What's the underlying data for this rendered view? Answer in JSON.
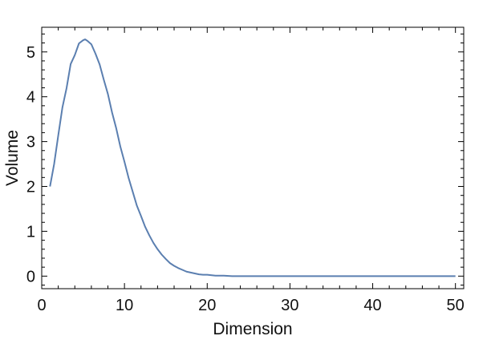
{
  "chart_data": {
    "type": "line",
    "title": "",
    "xlabel": "Dimension",
    "ylabel": "Volume",
    "xlim": [
      0,
      51
    ],
    "ylim": [
      -0.28,
      5.55
    ],
    "xticks": [
      0,
      10,
      20,
      30,
      40,
      50
    ],
    "yticks": [
      0,
      1,
      2,
      3,
      4,
      5
    ],
    "grid": false,
    "legend": "none",
    "series": [
      {
        "color": "#5b7fb0",
        "x": [
          1,
          1.5,
          2,
          2.5,
          3,
          3.5,
          4,
          4.5,
          5,
          5.25,
          5.5,
          6,
          6.5,
          7,
          7.5,
          8,
          8.5,
          9,
          9.5,
          10,
          10.5,
          11,
          11.5,
          12,
          12.5,
          13,
          13.5,
          14,
          14.5,
          15,
          15.5,
          16,
          16.5,
          17,
          17.5,
          18,
          18.5,
          19,
          19.5,
          20,
          21,
          22,
          23,
          24,
          25,
          26,
          27,
          28,
          29,
          30,
          32,
          34,
          36,
          38,
          40,
          42,
          44,
          46,
          48,
          50
        ],
        "y": [
          2,
          2.5,
          3.14,
          3.76,
          4.19,
          4.73,
          4.93,
          5.19,
          5.26,
          5.28,
          5.25,
          5.17,
          4.96,
          4.72,
          4.38,
          4.06,
          3.65,
          3.3,
          2.89,
          2.55,
          2.19,
          1.88,
          1.57,
          1.34,
          1.1,
          0.91,
          0.74,
          0.6,
          0.48,
          0.38,
          0.29,
          0.23,
          0.18,
          0.14,
          0.1,
          0.08,
          0.06,
          0.04,
          0.03,
          0.03,
          0.01,
          0.01,
          0,
          0,
          0,
          0,
          0,
          0,
          0,
          0,
          0,
          0,
          0,
          0,
          0,
          0,
          0,
          0,
          0,
          0
        ]
      }
    ]
  }
}
